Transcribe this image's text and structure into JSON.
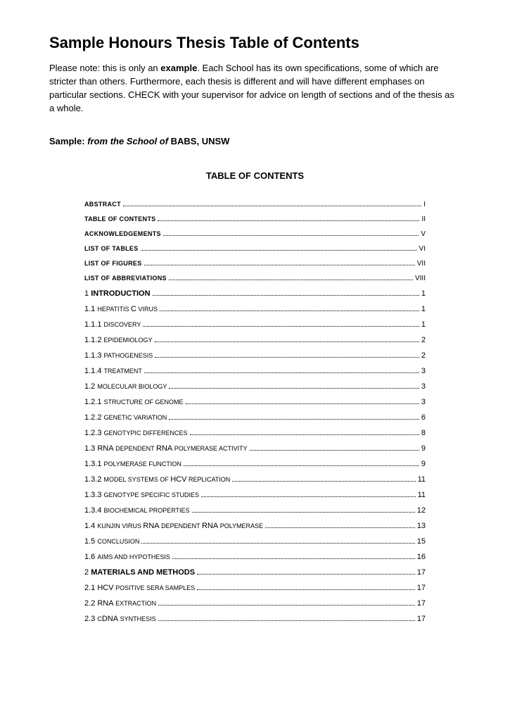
{
  "title": "Sample Honours Thesis Table of Contents",
  "intro_parts": {
    "p1": "Please note: this is only an ",
    "p2": "example",
    "p3": ".  Each School has its own specifications, some of which are stricter than others.  Furthermore, each thesis is different and will have different emphases on particular sections.  CHECK with your supervisor for advice on length of sections and of the thesis as a whole."
  },
  "sample_line": {
    "prefix": "Sample: ",
    "italic": "from the School of",
    "suffix": "  BABS, UNSW"
  },
  "toc_title": "TABLE OF CONTENTS",
  "toc": [
    {
      "label_html": "<span class='bold caps'>ABSTRACT</span>",
      "page": "I",
      "roman": true
    },
    {
      "label_html": "<span class='bold caps'>TABLE OF CONTENTS</span>",
      "page": "II",
      "roman": true
    },
    {
      "label_html": "<span class='bold caps'>ACKNOWLEDGEMENTS</span>",
      "page": "V",
      "roman": true
    },
    {
      "label_html": "<span class='bold caps'>LIST OF TABLES</span>",
      "page": "VI",
      "roman": true
    },
    {
      "label_html": "<span class='bold caps'>LIST OF FIGURES</span>",
      "page": "VII",
      "roman": true
    },
    {
      "label_html": "<span class='bold caps'>LIST OF ABBREVIATIONS</span>",
      "page": "VIII",
      "roman": true
    },
    {
      "label_html": "<span class='num'>1 </span><span class='bold'>INTRODUCTION</span>",
      "page": "1"
    },
    {
      "label_html": "<span class='num'>1.1 </span><span class='mixed'>HEPATITIS </span><span class='upper'>C</span><span class='mixed'> VIRUS</span>",
      "page": "1"
    },
    {
      "label_html": "<span class='num'>1.1.1 </span><span class='mixed'>DISCOVERY</span>",
      "page": "1"
    },
    {
      "label_html": "<span class='num'>1.1.2 </span><span class='mixed'>EPIDEMIOLOGY</span>",
      "page": "2"
    },
    {
      "label_html": "<span class='num'>1.1.3 </span><span class='mixed'>PATHOGENESIS</span>",
      "page": "2"
    },
    {
      "label_html": "<span class='num'>1.1.4 </span><span class='mixed'>TREATMENT</span>",
      "page": "3"
    },
    {
      "label_html": "<span class='num'>1.2 </span><span class='mixed'>MOLECULAR BIOLOGY</span>",
      "page": "3"
    },
    {
      "label_html": "<span class='num'>1.2.1 </span><span class='mixed'>STRUCTURE OF GENOME</span>",
      "page": "3"
    },
    {
      "label_html": "<span class='num'>1.2.2 </span><span class='mixed'>GENETIC VARIATION</span>",
      "page": "6"
    },
    {
      "label_html": "<span class='num'>1.2.3 </span><span class='mixed'>GENOTYPIC DIFFERENCES</span>",
      "page": "8"
    },
    {
      "label_html": "<span class='num'>1.3 </span><span class='upper'>RNA</span><span class='mixed'> DEPENDENT </span><span class='upper'>RNA</span><span class='mixed'> POLYMERASE ACTIVITY</span>",
      "page": "9"
    },
    {
      "label_html": "<span class='num'>1.3.1 </span><span class='mixed'>POLYMERASE FUNCTION</span>",
      "page": "9"
    },
    {
      "label_html": "<span class='num'>1.3.2 </span><span class='mixed'>MODEL SYSTEMS OF </span><span class='upper'>HCV</span><span class='mixed'> REPLICATION</span>",
      "page": "11"
    },
    {
      "label_html": "<span class='num'>1.3.3 </span><span class='mixed'>GENOTYPE SPECIFIC STUDIES</span>",
      "page": "11"
    },
    {
      "label_html": "<span class='num'>1.3.4 </span><span class='mixed'>BIOCHEMICAL PROPERTIES</span>",
      "page": "12"
    },
    {
      "label_html": "<span class='num'>1.4 </span><span class='mixed'>KUNJIN VIRUS </span><span class='upper'>RNA</span><span class='mixed'> DEPENDENT </span><span class='upper'>RNA</span><span class='mixed'> POLYMERASE</span>",
      "page": "13"
    },
    {
      "label_html": "<span class='num'>1.5 </span><span class='mixed'>CONCLUSION</span>",
      "page": "15"
    },
    {
      "label_html": "<span class='num'>1.6 </span><span class='mixed'>AIMS AND HYPOTHESIS</span>",
      "page": "16"
    },
    {
      "label_html": "<span class='num'>2 </span><span class='bold'>MATERIALS AND METHODS</span>",
      "page": "17"
    },
    {
      "label_html": "<span class='num'>2.1 </span><span class='upper'>HCV</span><span class='mixed'> POSITIVE SERA SAMPLES</span>",
      "page": "17"
    },
    {
      "label_html": "<span class='num'>2.2 </span><span class='upper'>RNA</span><span class='mixed'> EXTRACTION</span>",
      "page": "17"
    },
    {
      "label_html": "<span class='num'>2.3 </span><span class='mixed'>C</span><span class='upper'>DNA</span><span class='mixed'> SYNTHESIS</span>",
      "page": "17"
    }
  ]
}
